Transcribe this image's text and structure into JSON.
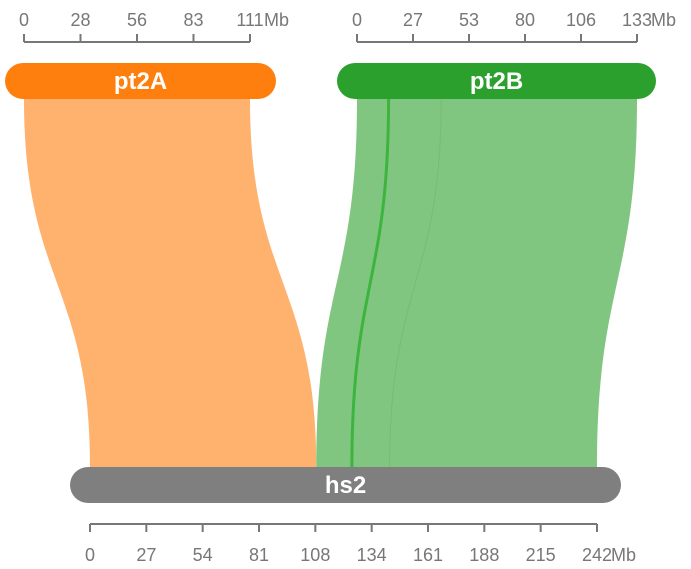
{
  "unit": "Mb",
  "colors": {
    "pt2A": "#ff7f0e",
    "pt2A_ribbon": "#ffb26e",
    "pt2B": "#2ca02c",
    "pt2B_ribbon": "#80c680",
    "pt2B_line": "#3db43d",
    "hs2": "#7f7f7f",
    "axis": "#777777"
  },
  "chromosomes": {
    "pt2A": {
      "name": "pt2A",
      "length": 111,
      "ticks": [
        "0",
        "28",
        "56",
        "83",
        "111"
      ]
    },
    "pt2B": {
      "name": "pt2B",
      "length": 133,
      "ticks": [
        "0",
        "27",
        "53",
        "80",
        "106",
        "133"
      ]
    },
    "hs2": {
      "name": "hs2",
      "length": 242,
      "ticks": [
        "0",
        "27",
        "54",
        "81",
        "108",
        "134",
        "161",
        "188",
        "215",
        "242"
      ]
    }
  },
  "synteny": [
    {
      "query": "pt2A",
      "query_start": 0,
      "query_end": 111,
      "target": "hs2",
      "target_start": 0,
      "target_end": 108,
      "color": "pt2A_ribbon"
    },
    {
      "query": "pt2B",
      "query_start": 0,
      "query_end": 133,
      "target": "hs2",
      "target_start": 108,
      "target_end": 242,
      "color": "pt2B_ribbon"
    }
  ],
  "inner_boundaries": [
    {
      "query": "pt2B",
      "query_pos": 15,
      "target": "hs2",
      "target_pos": 125,
      "style": "line"
    },
    {
      "query": "pt2B",
      "query_pos": 40,
      "target": "hs2",
      "target_pos": 143,
      "style": "edge"
    }
  ]
}
